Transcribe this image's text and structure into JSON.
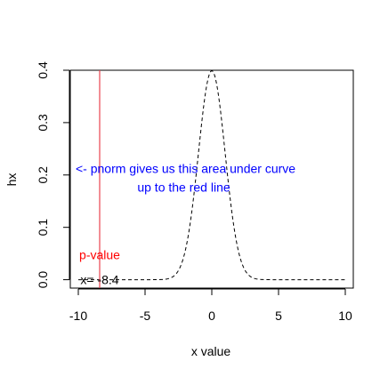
{
  "chart_data": {
    "type": "line",
    "title": "",
    "xlabel": "x value",
    "ylabel": "hx",
    "xlim": [
      -10.6,
      10.6
    ],
    "ylim": [
      -0.016,
      0.4
    ],
    "xticks": [
      -10,
      -5,
      0,
      5,
      10
    ],
    "xtick_labels": [
      "-10",
      "-5",
      "0",
      "5",
      "10"
    ],
    "yticks": [
      0.0,
      0.1,
      0.2,
      0.3,
      0.4
    ],
    "ytick_labels": [
      "0.0",
      "0.1",
      "0.2",
      "0.3",
      "0.4"
    ],
    "grid": false,
    "series": [
      {
        "curve": "standard-normal-density",
        "x_range": [
          -10,
          10
        ],
        "line_style": "dashed",
        "color": "#000000"
      }
    ],
    "vline": {
      "x": -8.4,
      "color": "#e8434f"
    },
    "annotations": [
      {
        "text": "<- pnorm gives us this area under curve",
        "x": -10.2,
        "y": 0.212,
        "anchor": "start",
        "color": "#0000ff"
      },
      {
        "text": "up to the red line",
        "x": -2.1,
        "y": 0.177,
        "anchor": "middle",
        "color": "#0000ff"
      },
      {
        "text": "p-value",
        "x": -8.4,
        "y": 0.048,
        "anchor": "middle",
        "color": "#ff0000"
      },
      {
        "text": "x= -8.4",
        "x": -8.4,
        "y": 0.0,
        "anchor": "middle",
        "color": "#000000"
      }
    ]
  }
}
